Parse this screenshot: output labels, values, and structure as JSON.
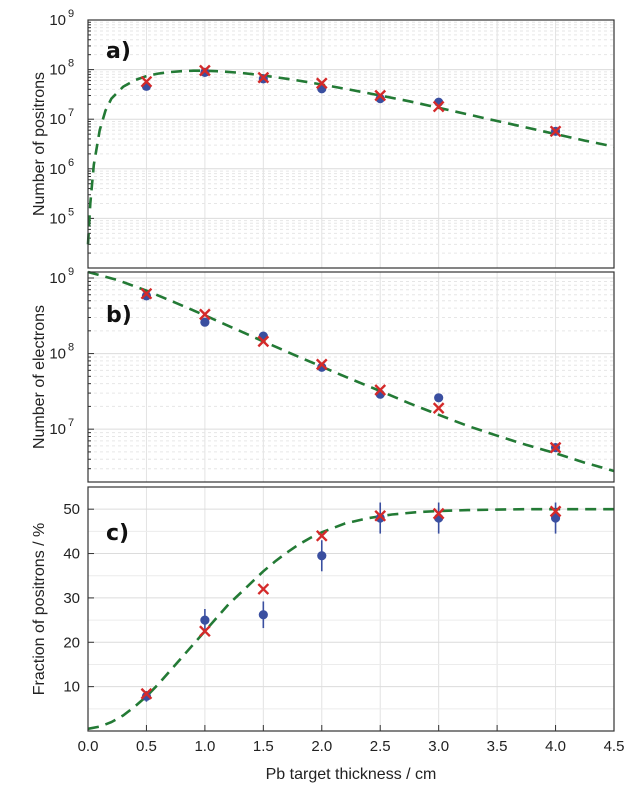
{
  "chart_data": [
    {
      "type": "scatter",
      "panel_label": "a)",
      "ylabel": "Number of positrons",
      "yscale": "log",
      "ylim": [
        10000.0,
        1000000000.0
      ],
      "xlim": [
        0,
        4.5
      ],
      "grid": true,
      "y_ticks": [
        {
          "value": 100000.0,
          "base": "10",
          "exp": "5"
        },
        {
          "value": 1000000.0,
          "base": "10",
          "exp": "6"
        },
        {
          "value": 10000000.0,
          "base": "10",
          "exp": "7"
        },
        {
          "value": 100000000.0,
          "base": "10",
          "exp": "8"
        },
        {
          "value": 1000000000.0,
          "base": "10",
          "exp": "9"
        }
      ],
      "series": [
        {
          "marker": "circle",
          "color": "#3a4fa0",
          "x": [
            0.5,
            1.0,
            1.5,
            2.0,
            2.5,
            3.0,
            4.0
          ],
          "y": [
            46000000.0,
            88000000.0,
            65000000.0,
            41000000.0,
            26000000.0,
            22000000.0,
            5700000.0
          ]
        },
        {
          "marker": "cross",
          "color": "#d42a2a",
          "x": [
            0.5,
            1.0,
            1.5,
            2.0,
            2.5,
            3.0,
            4.0
          ],
          "y": [
            57000000.0,
            96000000.0,
            69000000.0,
            53000000.0,
            30000000.0,
            18000000.0,
            5700000.0
          ]
        },
        {
          "style": "dashed-line",
          "color": "#237a35",
          "x": [
            0.0,
            0.02,
            0.05,
            0.1,
            0.15,
            0.2,
            0.3,
            0.4,
            0.5,
            0.6,
            0.7,
            0.8,
            0.9,
            1.0,
            1.1,
            1.2,
            1.3,
            1.4,
            1.5,
            1.75,
            2.0,
            2.25,
            2.5,
            2.75,
            3.0,
            3.25,
            3.5,
            3.75,
            4.0,
            4.25,
            4.5
          ],
          "y": [
            30000.0,
            200000.0,
            1200000.0,
            6000000.0,
            15000000.0,
            26000000.0,
            45000000.0,
            61000000.0,
            74000000.0,
            83000000.0,
            89000000.0,
            93000000.0,
            95000000.0,
            95000000.0,
            93000000.0,
            90000000.0,
            86000000.0,
            81000000.0,
            76000000.0,
            63000000.0,
            50000000.0,
            39000000.0,
            30000000.0,
            23000000.0,
            17000000.0,
            12500000.0,
            9200000.0,
            6800000.0,
            5000000.0,
            3700000.0,
            2800000.0
          ]
        }
      ]
    },
    {
      "type": "scatter",
      "panel_label": "b)",
      "ylabel": "Number of electrons",
      "yscale": "log",
      "ylim": [
        2000000.0,
        1200000000.0
      ],
      "xlim": [
        0,
        4.5
      ],
      "grid": true,
      "y_ticks": [
        {
          "value": 10000000.0,
          "base": "10",
          "exp": "7"
        },
        {
          "value": 100000000.0,
          "base": "10",
          "exp": "8"
        },
        {
          "value": 1000000000.0,
          "base": "10",
          "exp": "9"
        }
      ],
      "series": [
        {
          "marker": "circle",
          "color": "#3a4fa0",
          "x": [
            0.5,
            1.0,
            1.5,
            2.0,
            2.5,
            3.0,
            4.0
          ],
          "y": [
            580000000.0,
            260000000.0,
            170000000.0,
            66000000.0,
            29000000.0,
            26000000.0,
            5700000.0
          ]
        },
        {
          "marker": "cross",
          "color": "#d42a2a",
          "x": [
            0.5,
            1.0,
            1.5,
            2.0,
            2.5,
            3.0,
            4.0
          ],
          "y": [
            620000000.0,
            330000000.0,
            145000000.0,
            72000000.0,
            33000000.0,
            19000000.0,
            5700000.0
          ]
        },
        {
          "style": "dashed-line",
          "color": "#237a35",
          "x": [
            0.0,
            0.25,
            0.5,
            0.75,
            1.0,
            1.25,
            1.5,
            1.75,
            2.0,
            2.25,
            2.5,
            2.75,
            3.0,
            3.25,
            3.5,
            3.75,
            4.0,
            4.25,
            4.5
          ],
          "y": [
            1200000000.0,
            940000000.0,
            680000000.0,
            470000000.0,
            320000000.0,
            215000000.0,
            145000000.0,
            98000000.0,
            67000000.0,
            46000000.0,
            32000000.0,
            22000000.0,
            15500000.0,
            11000000.0,
            8200000.0,
            6200000.0,
            4800000.0,
            3600000.0,
            2800000.0
          ]
        }
      ]
    },
    {
      "type": "scatter",
      "panel_label": "c)",
      "ylabel": "Fraction of positrons / %",
      "xlabel": "Pb target thickness / cm",
      "yscale": "linear",
      "ylim": [
        0,
        55
      ],
      "xlim": [
        0,
        4.5
      ],
      "grid": true,
      "y_ticks": [
        "10",
        "20",
        "30",
        "40",
        "50"
      ],
      "x_ticks": [
        "0.0",
        "0.5",
        "1.0",
        "1.5",
        "2.0",
        "2.5",
        "3.0",
        "3.5",
        "4.0",
        "4.5"
      ],
      "series": [
        {
          "marker": "circle",
          "color": "#3a4fa0",
          "x": [
            0.5,
            1.0,
            1.5,
            2.0,
            2.5,
            3.0,
            4.0
          ],
          "y": [
            7.8,
            25.0,
            26.2,
            39.5,
            48.0,
            48.0,
            48.0
          ],
          "err": [
            1.2,
            2.5,
            3.0,
            3.5,
            3.5,
            3.5,
            3.5
          ]
        },
        {
          "marker": "cross",
          "color": "#d42a2a",
          "x": [
            0.5,
            1.0,
            1.5,
            2.0,
            2.5,
            3.0,
            4.0
          ],
          "y": [
            8.4,
            22.5,
            32.0,
            44.0,
            48.5,
            49.0,
            49.5
          ]
        },
        {
          "style": "dashed-line",
          "color": "#237a35",
          "x": [
            0.0,
            0.1,
            0.2,
            0.3,
            0.4,
            0.5,
            0.6,
            0.7,
            0.8,
            0.9,
            1.0,
            1.1,
            1.2,
            1.3,
            1.4,
            1.5,
            1.6,
            1.7,
            1.8,
            1.9,
            2.0,
            2.2,
            2.4,
            2.6,
            2.8,
            3.0,
            3.25,
            3.5,
            3.75,
            4.0,
            4.25,
            4.5
          ],
          "y": [
            0.5,
            1.0,
            2.0,
            3.5,
            5.5,
            7.8,
            10.5,
            13.5,
            16.5,
            19.5,
            22.5,
            25.5,
            28.5,
            31.0,
            33.5,
            36.0,
            38.2,
            40.2,
            42.0,
            43.5,
            44.8,
            46.8,
            48.0,
            48.8,
            49.3,
            49.6,
            49.8,
            49.9,
            50.0,
            50.0,
            50.0,
            50.0
          ]
        }
      ]
    }
  ]
}
